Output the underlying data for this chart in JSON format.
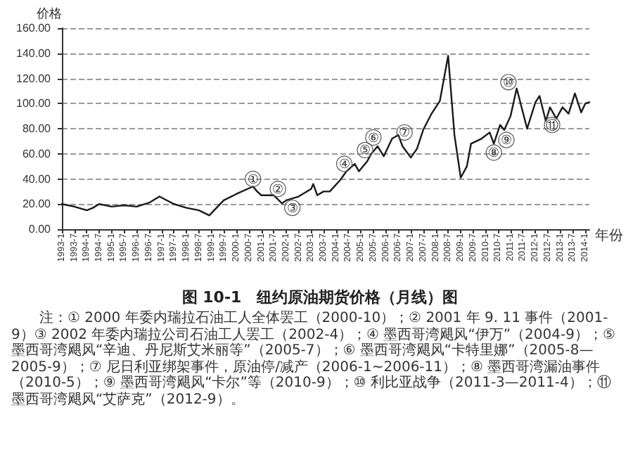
{
  "chart_data": {
    "type": "line",
    "title": "图 10-1　纽约原油期货价格（月线）图",
    "xlabel": "年份",
    "ylabel": "价格",
    "x": [
      "1993-01",
      "1993-07",
      "1994-01",
      "1994-04",
      "1994-07",
      "1995-01",
      "1995-07",
      "1996-01",
      "1996-07",
      "1996-12",
      "1997-07",
      "1998-01",
      "1998-07",
      "1998-12",
      "1999-07",
      "2000-01",
      "2000-09",
      "2000-11",
      "2001-01",
      "2001-07",
      "2001-11",
      "2002-01",
      "2002-07",
      "2003-01",
      "2003-02",
      "2003-04",
      "2003-07",
      "2003-10",
      "2004-03",
      "2004-06",
      "2004-10",
      "2004-12",
      "2005-04",
      "2005-06",
      "2005-09",
      "2005-12",
      "2006-04",
      "2006-07",
      "2006-09",
      "2007-01",
      "2007-04",
      "2007-07",
      "2007-11",
      "2008-03",
      "2008-07",
      "2008-10",
      "2009-01",
      "2009-04",
      "2009-06",
      "2009-11",
      "2010-03",
      "2010-05",
      "2010-08",
      "2010-10",
      "2011-01",
      "2011-04",
      "2011-07",
      "2011-09",
      "2012-01",
      "2012-03",
      "2012-06",
      "2012-08",
      "2012-11",
      "2013-02",
      "2013-05",
      "2013-08",
      "2013-11",
      "2014-01",
      "2014-03"
    ],
    "series": [
      {
        "color": "#1a1a1a",
        "values": [
          20,
          18,
          15,
          17,
          20,
          18,
          19,
          18,
          21,
          26,
          20,
          17,
          15,
          11,
          23,
          28,
          34,
          30,
          27,
          27,
          20.5,
          23,
          26,
          32,
          36,
          27,
          30,
          30,
          39,
          46,
          52,
          46,
          54,
          60,
          66,
          58,
          72,
          75,
          66,
          57,
          64,
          79,
          92,
          102,
          138,
          75,
          41,
          50,
          68,
          72,
          77,
          68,
          83,
          79,
          90,
          112,
          93,
          80,
          101,
          106,
          86,
          97,
          88,
          97,
          92,
          108,
          93,
          100,
          101
        ]
      }
    ],
    "xlim": [
      "1993-01",
      "2014-03"
    ],
    "xticks": [
      {
        "value": "1993-01",
        "label": "1993-1"
      },
      {
        "value": "1993-07",
        "label": "1993-7"
      },
      {
        "value": "1994-01",
        "label": "1994-1"
      },
      {
        "value": "1994-07",
        "label": "1994-7"
      },
      {
        "value": "1995-01",
        "label": "1995-1"
      },
      {
        "value": "1995-07",
        "label": "1995-7"
      },
      {
        "value": "1996-01",
        "label": "1996-1"
      },
      {
        "value": "1996-07",
        "label": "1996-7"
      },
      {
        "value": "1997-01",
        "label": "1997-1"
      },
      {
        "value": "1997-07",
        "label": "1997-7"
      },
      {
        "value": "1998-01",
        "label": "1998-1"
      },
      {
        "value": "1998-07",
        "label": "1998-7"
      },
      {
        "value": "1999-01",
        "label": "1999-1"
      },
      {
        "value": "1999-07",
        "label": "1999-7"
      },
      {
        "value": "2000-01",
        "label": "2000-1"
      },
      {
        "value": "2000-07",
        "label": "2000-7"
      },
      {
        "value": "2001-01",
        "label": "2001-1"
      },
      {
        "value": "2001-07",
        "label": "2001-7"
      },
      {
        "value": "2002-01",
        "label": "2002-1"
      },
      {
        "value": "2002-07",
        "label": "2002-7"
      },
      {
        "value": "2003-01",
        "label": "2003-1"
      },
      {
        "value": "2003-07",
        "label": "2003-7"
      },
      {
        "value": "2004-01",
        "label": "2004-1"
      },
      {
        "value": "2004-07",
        "label": "2004-7"
      },
      {
        "value": "2005-01",
        "label": "2005-1"
      },
      {
        "value": "2005-07",
        "label": "2005-7"
      },
      {
        "value": "2006-01",
        "label": "2006-1"
      },
      {
        "value": "2006-07",
        "label": "2006-7"
      },
      {
        "value": "2007-01",
        "label": "2007-1"
      },
      {
        "value": "2007-07",
        "label": "2007-7"
      },
      {
        "value": "2008-01",
        "label": "2008-1"
      },
      {
        "value": "2008-07",
        "label": "2008-7"
      },
      {
        "value": "2009-01",
        "label": "2009-1"
      },
      {
        "value": "2009-07",
        "label": "2009-7"
      },
      {
        "value": "2010-01",
        "label": "2010-1"
      },
      {
        "value": "2010-07",
        "label": "2010-7"
      },
      {
        "value": "2011-01",
        "label": "2011-1"
      },
      {
        "value": "2011-07",
        "label": "2011-7"
      },
      {
        "value": "2012-01",
        "label": "2012-1"
      },
      {
        "value": "2012-07",
        "label": "2012-7"
      },
      {
        "value": "2013-01",
        "label": "2013-1"
      },
      {
        "value": "2013-07",
        "label": "2013-7"
      },
      {
        "value": "2014-01",
        "label": "2014-1"
      }
    ],
    "ylim": [
      0,
      160
    ],
    "yticks": [
      {
        "value": 0,
        "label": "0.00"
      },
      {
        "value": 20,
        "label": "20.00"
      },
      {
        "value": 40,
        "label": "40.00"
      },
      {
        "value": 60,
        "label": "60.00"
      },
      {
        "value": 80,
        "label": "80.00"
      },
      {
        "value": 100,
        "label": "100.00"
      },
      {
        "value": 120,
        "label": "120.00"
      },
      {
        "value": 140,
        "label": "140.00"
      },
      {
        "value": 160,
        "label": "160.00"
      }
    ],
    "grid": "y",
    "marker": "none",
    "line_style": "solid",
    "annotations": [
      {
        "text": "①",
        "x": "2000-09",
        "y": 40
      },
      {
        "text": "②",
        "x": "2001-09",
        "y": 32
      },
      {
        "text": "③",
        "x": "2002-04",
        "y": 17
      },
      {
        "text": "④",
        "x": "2004-05",
        "y": 52
      },
      {
        "text": "⑤",
        "x": "2005-03",
        "y": 63
      },
      {
        "text": "⑥",
        "x": "2005-07",
        "y": 73
      },
      {
        "text": "⑦",
        "x": "2006-10",
        "y": 77
      },
      {
        "text": "⑧",
        "x": "2010-05",
        "y": 61
      },
      {
        "text": "⑨",
        "x": "2010-11",
        "y": 71
      },
      {
        "text": "⑩",
        "x": "2010-12",
        "y": 117
      },
      {
        "text": "⑪",
        "x": "2012-09",
        "y": 83
      },
      "注：① 2000 年委内瑞拉石油工人全体罢工（2000-10）；② 2001 年 9. 11 事件（2001-9）③ 2002 年委内瑞拉公司石油工人罢工（2002-4）；④ 墨西哥湾飓风“伊万”（2004-9）；⑤ 墨西哥湾飓风“辛迪、丹尼斯艾米丽等”（2005-7）；⑥ 墨西哥湾飓风“卡特里娜”（2005-8—2005-9）；⑦ 尼日利亚绑架事件，原油停/减产（2006-1~2006-11）；⑧ 墨西哥湾漏油事件（2010-5）；⑨ 墨西哥湾飓风“卡尔”等（2010-9）；⑩ 利比亚战争（2011-3—2011-4）；⑪ 墨西哥湾飓风“艾萨克”（2012-9）。"
    ]
  }
}
